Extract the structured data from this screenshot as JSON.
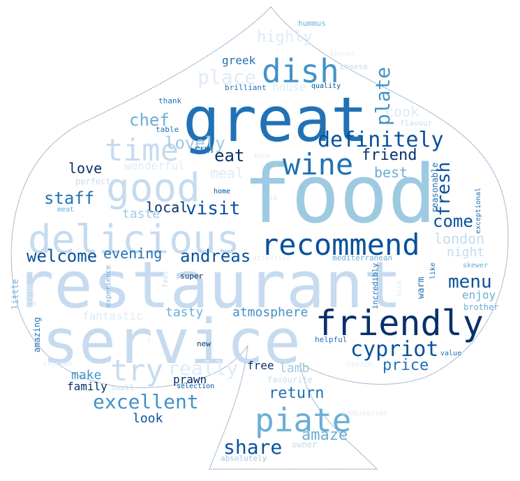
{
  "colors": {
    "outline": "#8aa8c8",
    "c1": "#08306b",
    "c2": "#08519c",
    "c3": "#2171b5",
    "c4": "#4292c6",
    "c5": "#6baed6",
    "c6": "#9ecae1",
    "c7": "#c6dbef",
    "c8": "#deebf7"
  },
  "words": [
    {
      "text": "food",
      "color": "c6"
    },
    {
      "text": "restaurant",
      "color": "c7"
    },
    {
      "text": "service",
      "color": "c7"
    },
    {
      "text": "great",
      "color": "c3"
    },
    {
      "text": "delicious",
      "color": "c7"
    },
    {
      "text": "good",
      "color": "c7"
    },
    {
      "text": "friendly",
      "color": "c1"
    },
    {
      "text": "recommend",
      "color": "c2"
    },
    {
      "text": "piate",
      "color": "c5"
    },
    {
      "text": "dish",
      "color": "c4"
    },
    {
      "text": "time",
      "color": "c7"
    },
    {
      "text": "wine",
      "color": "c3"
    },
    {
      "text": "try",
      "color": "c7"
    },
    {
      "text": "cypriot",
      "color": "c2"
    },
    {
      "text": "excellent",
      "color": "c4"
    },
    {
      "text": "definitely",
      "color": "c2"
    },
    {
      "text": "share",
      "color": "c2"
    },
    {
      "text": "place",
      "color": "c8"
    },
    {
      "text": "plate",
      "color": "c4"
    },
    {
      "text": "fresh",
      "color": "c2"
    },
    {
      "text": "really",
      "color": "c8"
    },
    {
      "text": "menu",
      "color": "c2"
    },
    {
      "text": "visit",
      "color": "c2"
    },
    {
      "text": "andreas",
      "color": "c2"
    },
    {
      "text": "welcome",
      "color": "c2"
    },
    {
      "text": "staff",
      "color": "c3"
    },
    {
      "text": "chef",
      "color": "c5"
    },
    {
      "text": "eat",
      "color": "c1"
    },
    {
      "text": "lovely",
      "color": "c6"
    },
    {
      "text": "highly",
      "color": "c8"
    },
    {
      "text": "come",
      "color": "c2"
    },
    {
      "text": "price",
      "color": "c3"
    },
    {
      "text": "return",
      "color": "c3"
    },
    {
      "text": "amaze",
      "color": "c5"
    },
    {
      "text": "evening",
      "color": "c3"
    },
    {
      "text": "london",
      "color": "c7"
    },
    {
      "text": "best",
      "color": "c5"
    },
    {
      "text": "friend",
      "color": "c1"
    },
    {
      "text": "cook",
      "color": "c8"
    },
    {
      "text": "meal",
      "color": "c8"
    },
    {
      "text": "local",
      "color": "c1"
    },
    {
      "text": "love",
      "color": "c1"
    },
    {
      "text": "night",
      "color": "c7"
    },
    {
      "text": "lamb",
      "color": "c6"
    },
    {
      "text": "make",
      "color": "c4"
    },
    {
      "text": "atmosphere",
      "color": "c4"
    },
    {
      "text": "tasty",
      "color": "c5"
    },
    {
      "text": "taste",
      "color": "c6"
    },
    {
      "text": "enjoy",
      "color": "c5"
    },
    {
      "text": "look",
      "color": "c2"
    },
    {
      "text": "prawn",
      "color": "c1"
    },
    {
      "text": "family",
      "color": "c1"
    },
    {
      "text": "free",
      "color": "c1"
    },
    {
      "text": "wonderful",
      "color": "c8"
    },
    {
      "text": "fantastic",
      "color": "c8"
    },
    {
      "text": "gem",
      "color": "c8"
    },
    {
      "text": "greek",
      "color": "c3"
    },
    {
      "text": "house",
      "color": "c8"
    },
    {
      "text": "run",
      "color": "c3"
    },
    {
      "text": "reasonable",
      "color": "c3"
    },
    {
      "text": "warm",
      "color": "c3"
    },
    {
      "text": "brother",
      "color": "c5"
    },
    {
      "text": "little",
      "color": "c5"
    },
    {
      "text": "amazing",
      "color": "c3"
    },
    {
      "text": "exceptional",
      "color": "c3"
    },
    {
      "text": "incredibly",
      "color": "c3"
    },
    {
      "text": "perfect",
      "color": "c7"
    },
    {
      "text": "favourite",
      "color": "c7"
    },
    {
      "text": "owner",
      "color": "c7"
    },
    {
      "text": "absolutely",
      "color": "c6"
    },
    {
      "text": "brilliant",
      "color": "c3"
    },
    {
      "text": "cheese",
      "color": "c7"
    },
    {
      "text": "hummus",
      "color": "c5"
    },
    {
      "text": "quality",
      "color": "c2"
    },
    {
      "text": "thank",
      "color": "c3"
    },
    {
      "text": "table",
      "color": "c3"
    },
    {
      "text": "flavour",
      "color": "c7"
    },
    {
      "text": "know",
      "color": "c8"
    },
    {
      "text": "home",
      "color": "c2"
    },
    {
      "text": "meat",
      "color": "c5"
    },
    {
      "text": "super",
      "color": "c1"
    },
    {
      "text": "feel",
      "color": "c7"
    },
    {
      "text": "experience",
      "color": "c5"
    },
    {
      "text": "attentive",
      "color": "c8"
    },
    {
      "text": "mediterranean",
      "color": "c5"
    },
    {
      "text": "skewer",
      "color": "c5"
    },
    {
      "text": "like",
      "color": "c3"
    },
    {
      "text": "nice",
      "color": "c8"
    },
    {
      "text": "helpful",
      "color": "c3"
    },
    {
      "text": "value",
      "color": "c3"
    },
    {
      "text": "choice",
      "color": "c8"
    },
    {
      "text": "combination",
      "color": "c8"
    },
    {
      "text": "selection",
      "color": "c2"
    },
    {
      "text": "small",
      "color": "c7"
    },
    {
      "text": "new",
      "color": "c1"
    },
    {
      "text": "chicken",
      "color": "c8"
    },
    {
      "text": "10",
      "color": "c8"
    },
    {
      "text": "7",
      "color": "c8"
    },
    {
      "text": "dinner",
      "color": "c8"
    }
  ]
}
